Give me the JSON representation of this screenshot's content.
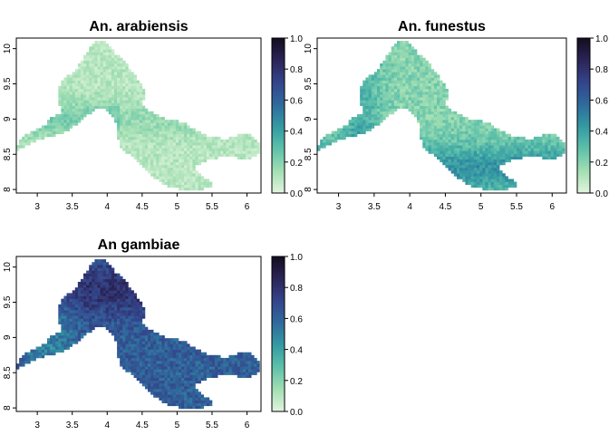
{
  "panels": [
    {
      "title": "An. arabiensis",
      "palette_hint": "low",
      "value_range": [
        0.0,
        0.4
      ]
    },
    {
      "title": "An. funestus",
      "palette_hint": "mid",
      "value_range": [
        0.05,
        0.55
      ]
    },
    {
      "title": "An gambiae",
      "palette_hint": "high",
      "value_range": [
        0.4,
        0.95
      ]
    }
  ],
  "axes": {
    "x_ticks": [
      "3",
      "3.5",
      "4",
      "4.5",
      "5",
      "5.5",
      "6"
    ],
    "x_values": [
      3,
      3.5,
      4,
      4.5,
      5,
      5.5,
      6
    ],
    "x_range": [
      2.7,
      6.2
    ],
    "y_ticks": [
      "8",
      "8.5",
      "9",
      "9.5",
      "10"
    ],
    "y_values": [
      8,
      8.5,
      9,
      9.5,
      10
    ],
    "y_range": [
      7.95,
      10.15
    ]
  },
  "legend": {
    "ticks": [
      "0.0",
      "0.2",
      "0.4",
      "0.6",
      "0.8",
      "1.0"
    ],
    "values": [
      0,
      0.2,
      0.4,
      0.6,
      0.8,
      1.0
    ],
    "colors": [
      "#e3f5df",
      "#a3dfb3",
      "#5fc1aa",
      "#349ba3",
      "#2f6b9d",
      "#34458b",
      "#2b2559",
      "#140d1f"
    ]
  }
}
